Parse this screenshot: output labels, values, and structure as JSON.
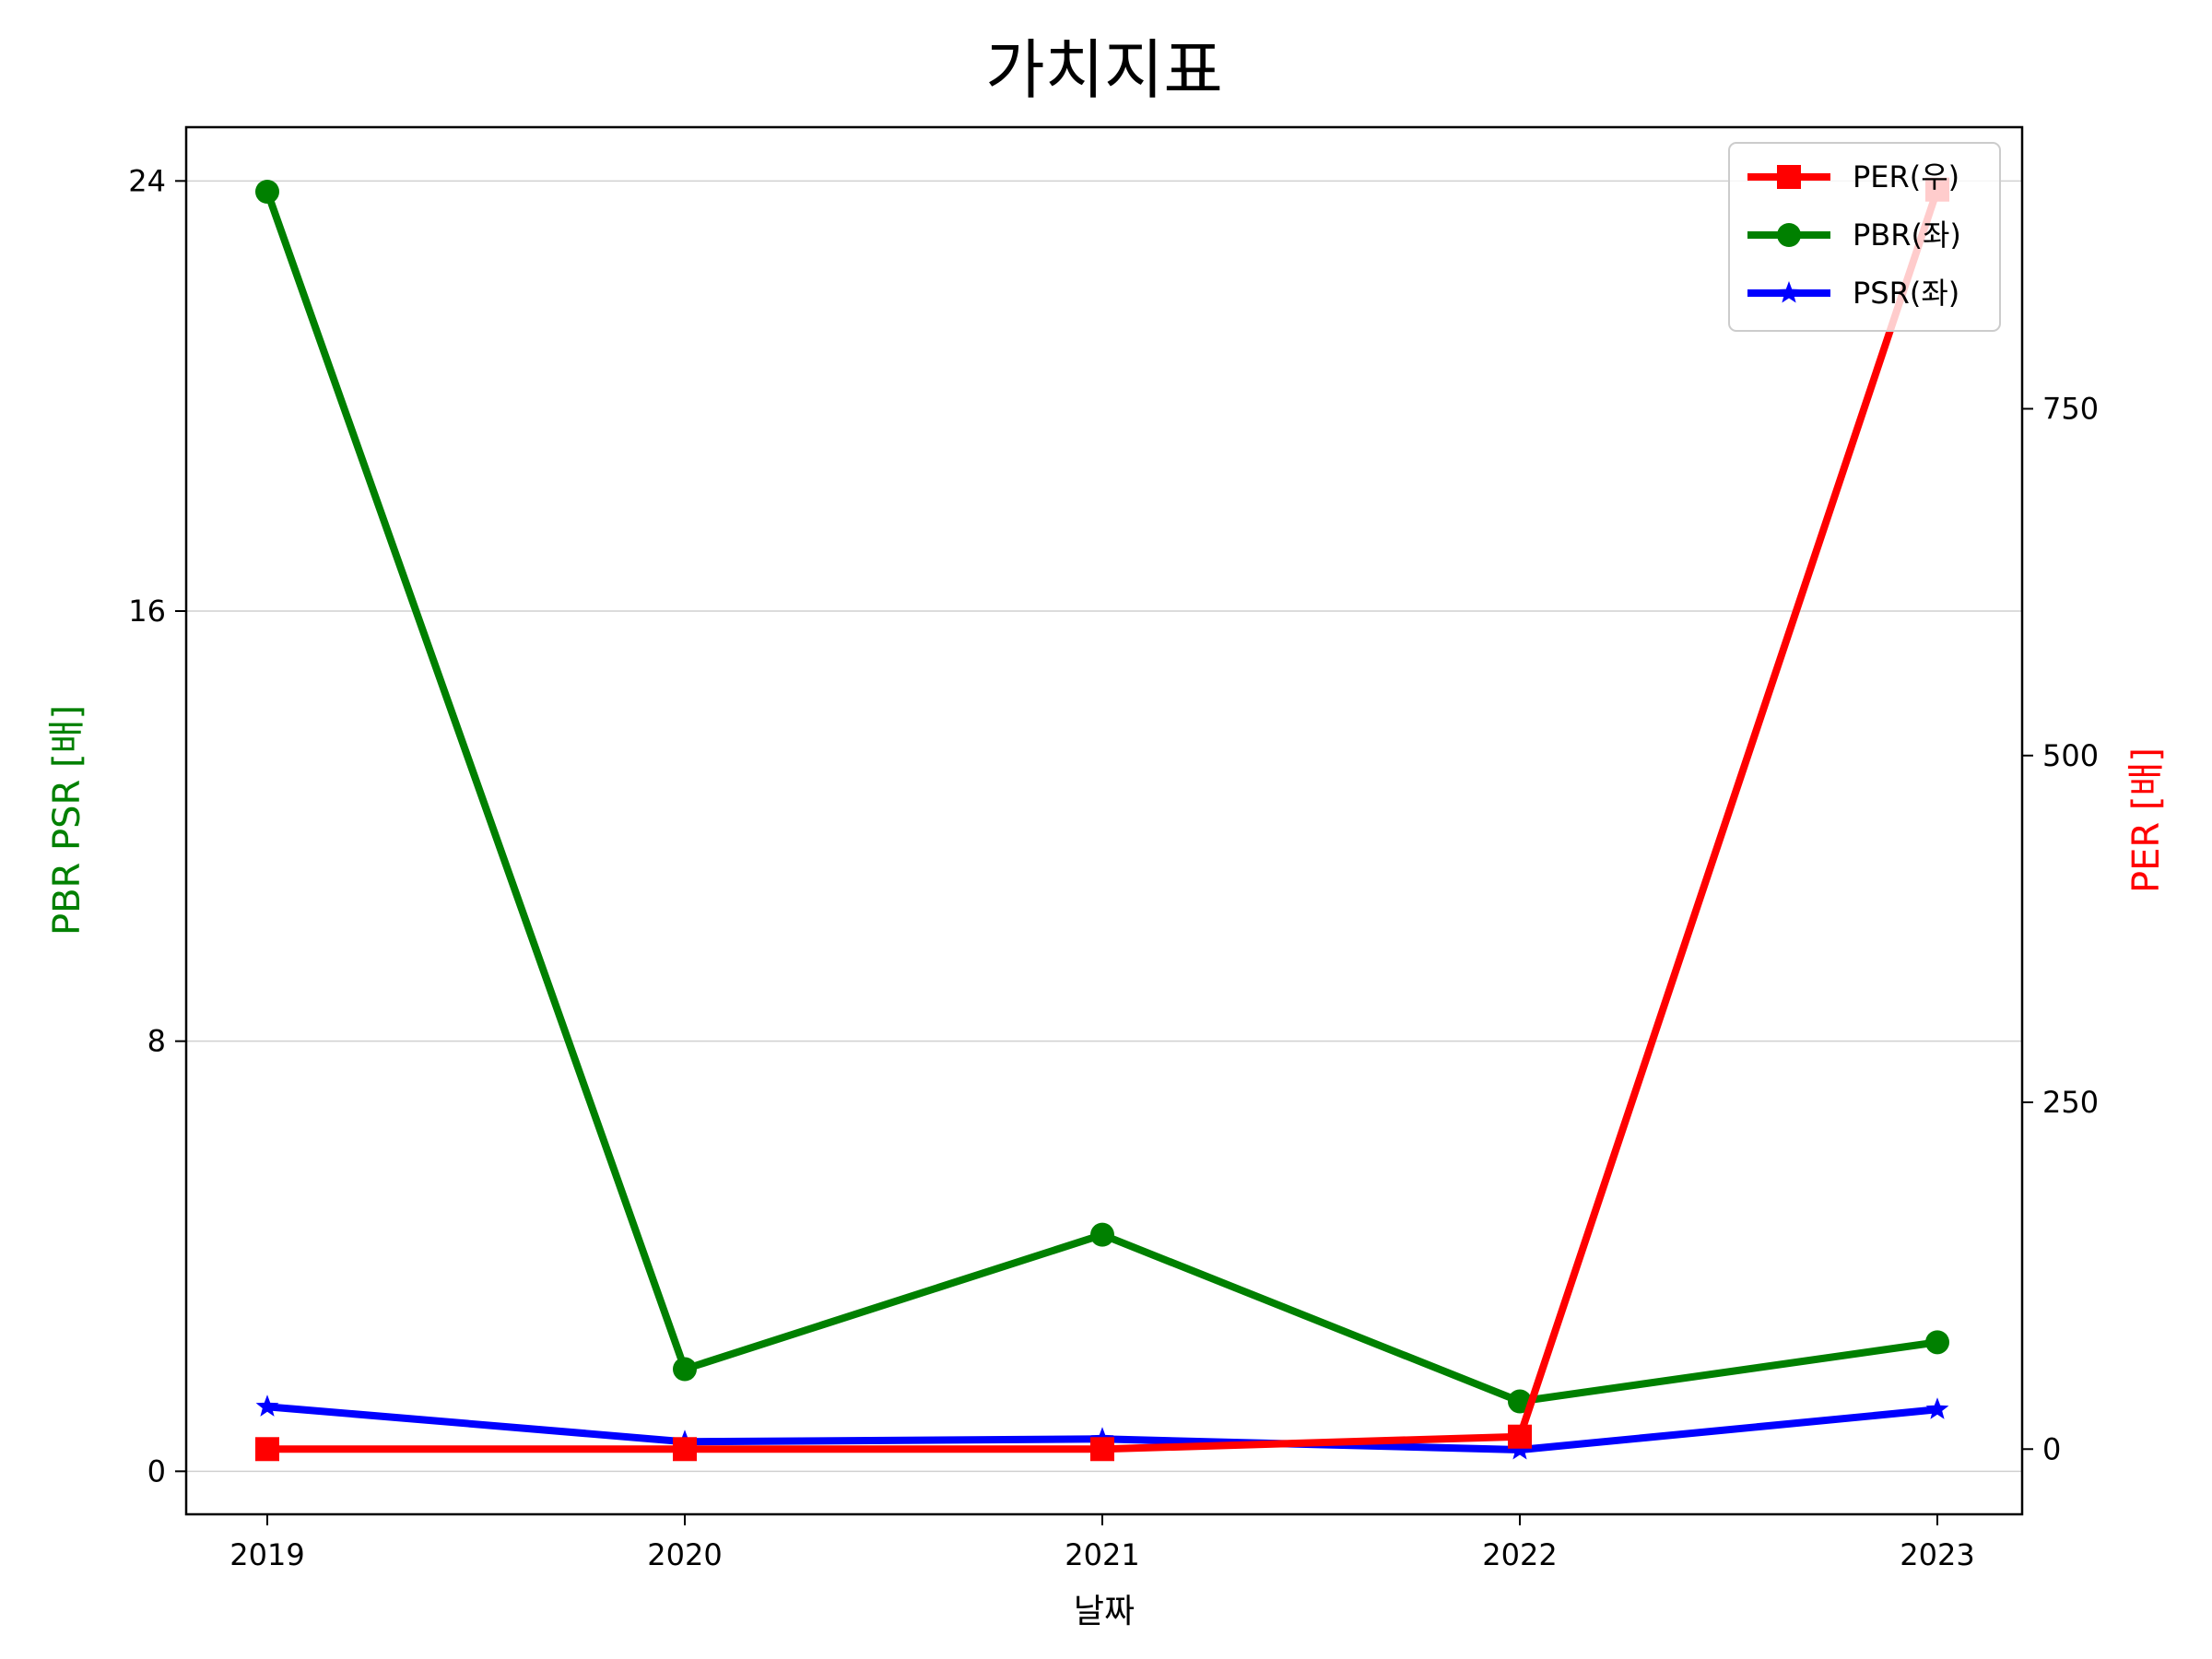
{
  "chart_data": {
    "type": "line",
    "title": "가치지표",
    "xlabel": "날짜",
    "ylabel_left": "PBR PSR [배]",
    "ylabel_right": "PER [배]",
    "categories": [
      "2019",
      "2020",
      "2021",
      "2022",
      "2023"
    ],
    "left_axis": {
      "ylim": [
        -0.8,
        25
      ],
      "ticks": [
        0,
        8,
        16,
        24
      ],
      "tick_labels": [
        "0",
        "8",
        "16",
        "24"
      ]
    },
    "right_axis": {
      "ylim": [
        -47,
        953
      ],
      "ticks": [
        0,
        250,
        500,
        750
      ],
      "tick_labels": [
        "0",
        "250",
        "500",
        "750"
      ]
    },
    "grid": "horizontal",
    "legend_position": "top-right",
    "series": [
      {
        "name": "PER(우)",
        "axis": "right",
        "color": "#ff0000",
        "marker": "square",
        "values": [
          0,
          0,
          0,
          9,
          908
        ]
      },
      {
        "name": "PBR(좌)",
        "axis": "left",
        "color": "#008000",
        "marker": "circle",
        "values": [
          23.8,
          1.9,
          4.4,
          1.3,
          2.4
        ]
      },
      {
        "name": "PSR(좌)",
        "axis": "left",
        "color": "#0000ff",
        "marker": "star",
        "values": [
          1.2,
          0.55,
          0.6,
          0.4,
          1.15
        ]
      }
    ]
  }
}
